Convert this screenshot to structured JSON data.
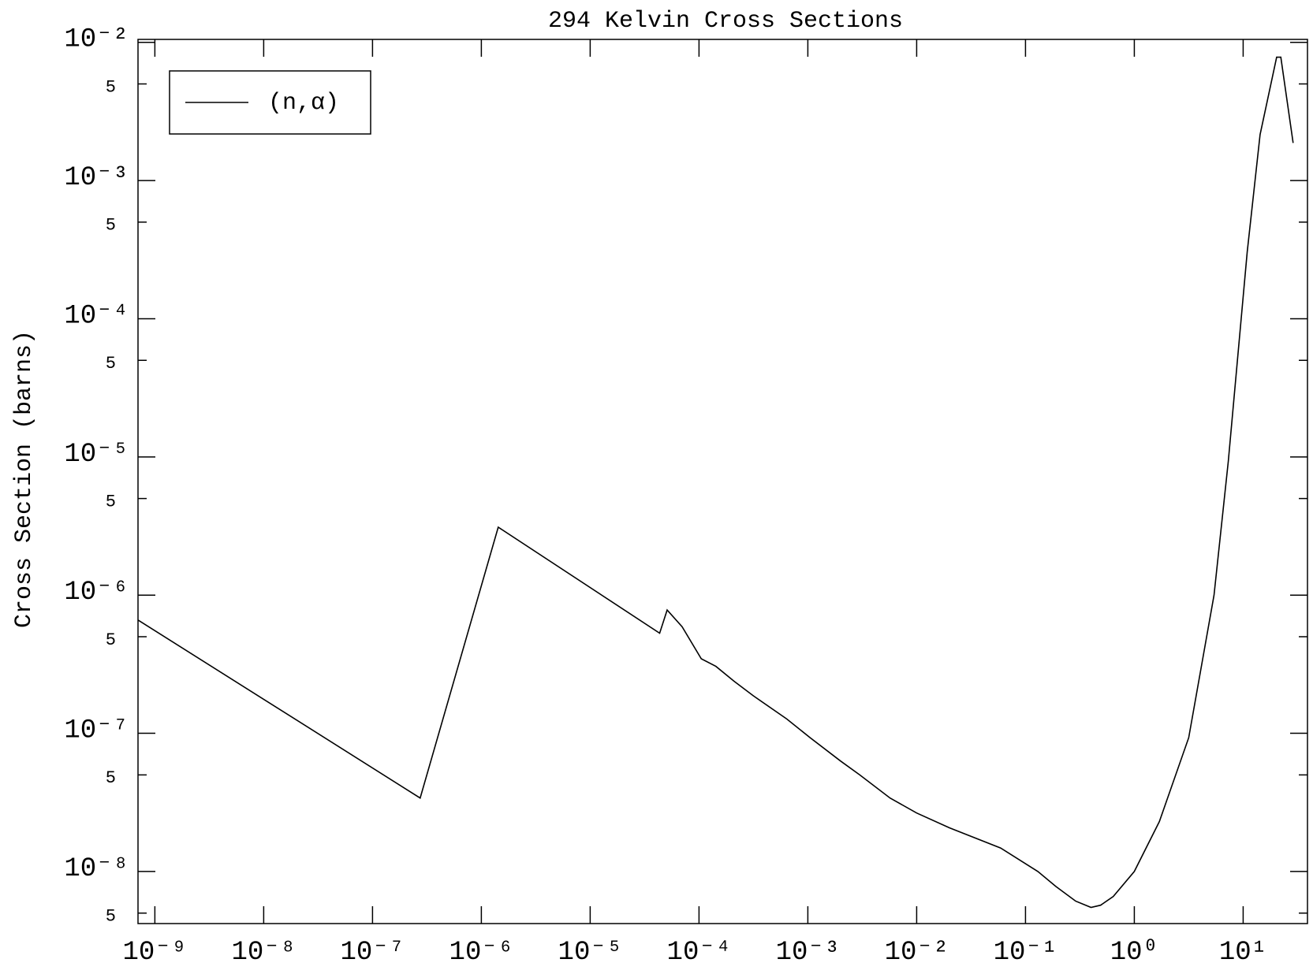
{
  "chart_data": {
    "type": "line",
    "title": "294 Kelvin Cross Sections",
    "y_label": "Cross Section (barns)",
    "log_x": true,
    "log_y": true,
    "legend": "top-left",
    "xlim": [
      7e-10,
      39
    ],
    "ylim": [
      4.2e-09,
      0.0105
    ],
    "xticks": [
      {
        "value": 1e-09,
        "label": "10⁻⁹"
      },
      {
        "value": 1e-08,
        "label": "10⁻⁸"
      },
      {
        "value": 1e-07,
        "label": "10⁻⁷"
      },
      {
        "value": 1e-06,
        "label": "10⁻⁶"
      },
      {
        "value": 1e-05,
        "label": "10⁻⁵"
      },
      {
        "value": 0.0001,
        "label": "10⁻⁴"
      },
      {
        "value": 0.001,
        "label": "10⁻³"
      },
      {
        "value": 0.01,
        "label": "10⁻²"
      },
      {
        "value": 0.1,
        "label": "10⁻¹"
      },
      {
        "value": 1,
        "label": "10⁰"
      },
      {
        "value": 10,
        "label": "10¹"
      }
    ],
    "yticks": [
      {
        "value": 0.01,
        "label": "10⁻²"
      },
      {
        "value": 0.005,
        "label": "5"
      },
      {
        "value": 0.001,
        "label": "10⁻³"
      },
      {
        "value": 0.0005,
        "label": "5"
      },
      {
        "value": 0.0001,
        "label": "10⁻⁴"
      },
      {
        "value": 5e-05,
        "label": "5"
      },
      {
        "value": 1e-05,
        "label": "10⁻⁵"
      },
      {
        "value": 5e-06,
        "label": "5"
      },
      {
        "value": 1e-06,
        "label": "10⁻⁶"
      },
      {
        "value": 5e-07,
        "label": "5"
      },
      {
        "value": 1e-07,
        "label": "10⁻⁷"
      },
      {
        "value": 5e-08,
        "label": "5"
      },
      {
        "value": 1e-08,
        "label": "10⁻⁸"
      },
      {
        "value": 5e-09,
        "label": "5"
      }
    ],
    "series": [
      {
        "name": "(n,α)",
        "color": "#000000",
        "x": [
          7e-10,
          2.74e-07,
          1.43e-06,
          4.35e-05,
          5.1e-05,
          7e-05,
          0.000105,
          0.000143,
          0.00021,
          0.000315,
          0.00064,
          0.00105,
          0.002,
          0.003,
          0.0057,
          0.01,
          0.02,
          0.059,
          0.13,
          0.19,
          0.29,
          0.4,
          0.49,
          0.64,
          1.0,
          1.7,
          3.16,
          5.4,
          7.3,
          10.9,
          14.3,
          20.3,
          22.2,
          28.8
        ],
        "values": [
          6.6e-07,
          3.4e-08,
          3.1e-06,
          5.3e-07,
          7.8e-07,
          5.9e-07,
          3.46e-07,
          3.05e-07,
          2.38e-07,
          1.87e-07,
          1.27e-07,
          9.3e-08,
          6.3e-08,
          5e-08,
          3.4e-08,
          2.65e-08,
          2.07e-08,
          1.48e-08,
          1e-08,
          7.8e-09,
          6.1e-09,
          5.5e-09,
          5.7e-09,
          6.6e-09,
          1e-08,
          2.3e-08,
          9.3e-08,
          1e-06,
          9.3e-06,
          0.000305,
          0.00215,
          0.0078,
          0.0078,
          0.00187
        ]
      }
    ]
  }
}
